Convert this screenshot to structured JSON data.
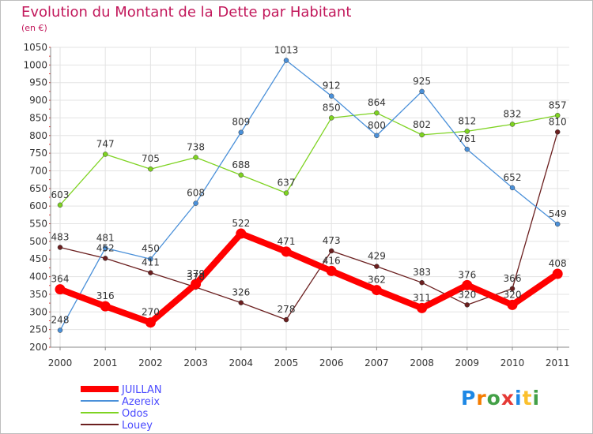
{
  "chart_data": {
    "type": "line",
    "title": "Evolution du Montant de la Dette par Habitant",
    "unit_label": "(en €)",
    "categories": [
      "2000",
      "2001",
      "2002",
      "2003",
      "2004",
      "2005",
      "2006",
      "2007",
      "2008",
      "2009",
      "2010",
      "2011"
    ],
    "ylim": [
      200,
      1050
    ],
    "yticks": [
      200,
      250,
      300,
      350,
      400,
      450,
      500,
      550,
      600,
      650,
      700,
      750,
      800,
      850,
      900,
      950,
      1000,
      1050
    ],
    "grid": true,
    "legend_position": "bottom-left",
    "series": [
      {
        "name": "JUILLAN",
        "color": "#ff0000",
        "values": [
          364,
          316,
          270,
          379,
          522,
          471,
          416,
          362,
          311,
          376,
          320,
          408
        ]
      },
      {
        "name": "Azereix",
        "color": "#4a90d9",
        "values": [
          248,
          481,
          450,
          608,
          809,
          1013,
          912,
          800,
          925,
          761,
          652,
          549
        ]
      },
      {
        "name": "Odos",
        "color": "#7ed321",
        "values": [
          603,
          747,
          705,
          738,
          688,
          637,
          850,
          864,
          802,
          812,
          832,
          857
        ]
      },
      {
        "name": "Louey",
        "color": "#6b1f1f",
        "values": [
          483,
          452,
          411,
          370,
          326,
          278,
          473,
          429,
          383,
          320,
          366,
          810
        ]
      }
    ]
  },
  "brand": {
    "letters": [
      "P",
      "r",
      "o",
      "x",
      "i",
      "t",
      "i"
    ],
    "colors": [
      "#1e88e5",
      "#f57c00",
      "#43a047",
      "#e53935",
      "#1e88e5",
      "#fbc02d",
      "#43a047"
    ]
  }
}
